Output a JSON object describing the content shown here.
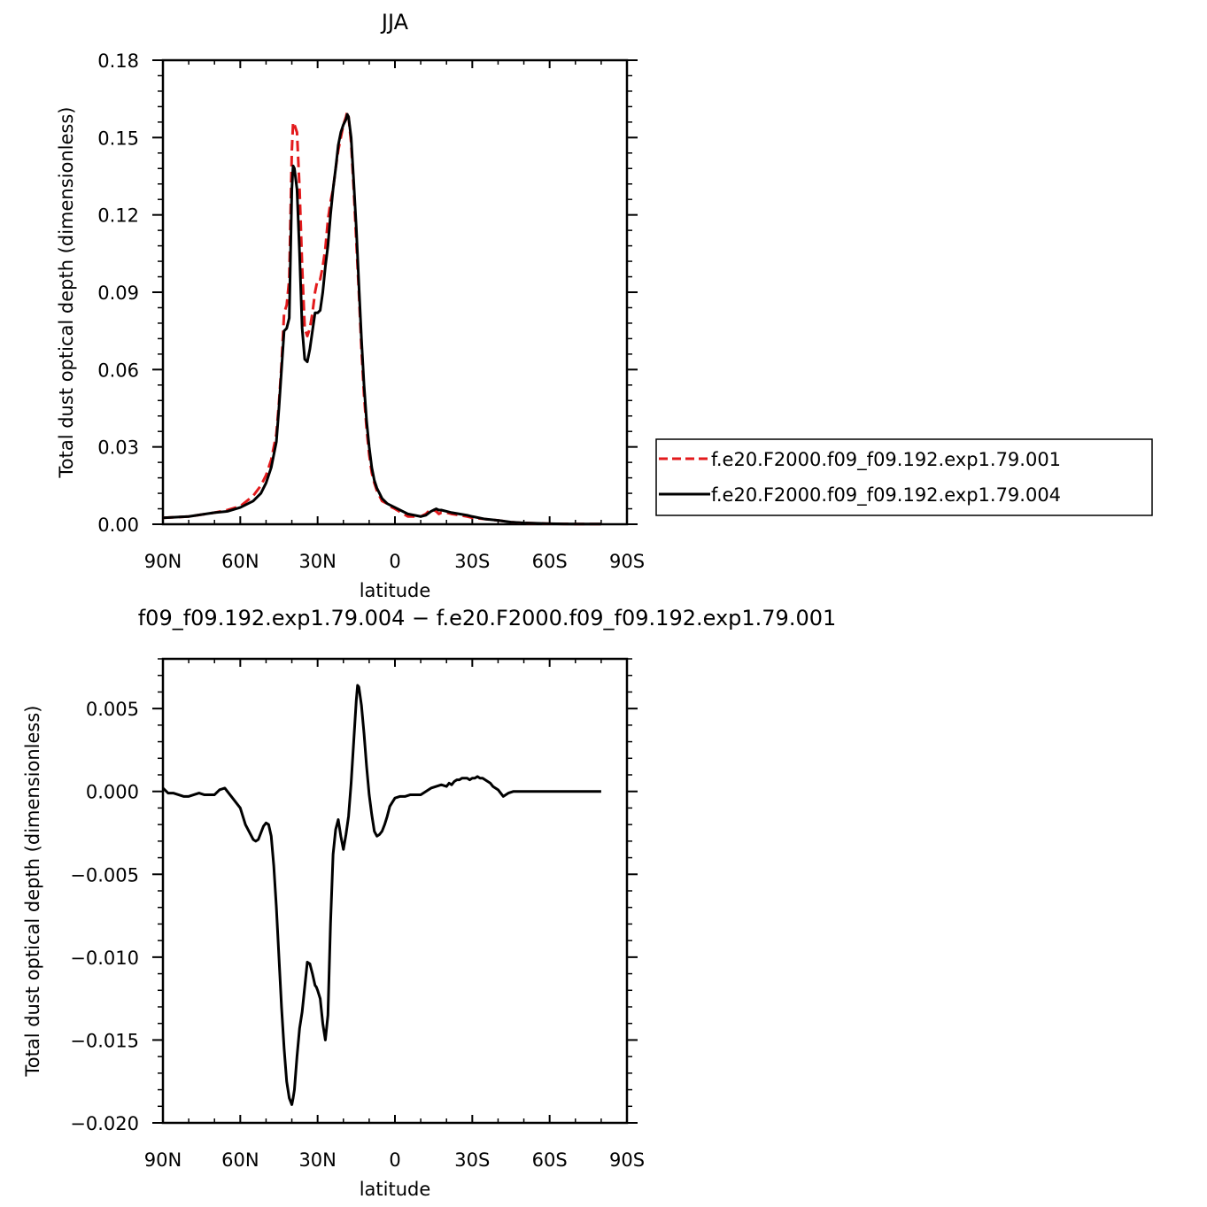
{
  "chart_data": [
    {
      "type": "line",
      "title": "JJA",
      "xlabel": "latitude",
      "ylabel": "Total dust optical depth (dimensionless)",
      "x_ticks": [
        -90,
        -60,
        -30,
        0,
        30,
        60,
        90
      ],
      "x_tick_labels": [
        "90N",
        "60N",
        "30N",
        "0",
        "30S",
        "60S",
        "90S"
      ],
      "y_ticks": [
        0,
        0.03,
        0.06,
        0.09,
        0.12,
        0.15,
        0.18
      ],
      "y_tick_labels": [
        "0.00",
        "0.03",
        "0.06",
        "0.09",
        "0.12",
        "0.15",
        "0.18"
      ],
      "xlim": [
        -90,
        90
      ],
      "ylim": [
        0,
        0.18
      ],
      "grid": false,
      "legend_position": "right",
      "series": [
        {
          "name": "f.e20.F2000.f09_f09.192.exp1.79.001",
          "color": "#e31a1c",
          "style": "dashed",
          "x": [
            -90,
            -80,
            -70,
            -65,
            -60,
            -55,
            -52,
            -50,
            -48,
            -46,
            -45,
            -44,
            -43,
            -42,
            -41,
            -40,
            -39.5,
            -39,
            -38,
            -37,
            -36,
            -35,
            -34,
            -33,
            -32,
            -31,
            -30,
            -29,
            -28,
            -27,
            -26,
            -25,
            -24,
            -23,
            -22,
            -21,
            -20,
            -19,
            -18.5,
            -18,
            -17,
            -16,
            -15,
            -14,
            -13,
            -12,
            -11,
            -10,
            -9,
            -8,
            -7,
            -6,
            -5,
            -4,
            -3,
            -2,
            0,
            5,
            10,
            12,
            14,
            15,
            16,
            17,
            18,
            20,
            22,
            25,
            28,
            30,
            35,
            40,
            45,
            50,
            60,
            70,
            80
          ],
          "values": [
            0.0025,
            0.003,
            0.0045,
            0.0055,
            0.007,
            0.011,
            0.015,
            0.019,
            0.025,
            0.035,
            0.047,
            0.062,
            0.082,
            0.085,
            0.095,
            0.145,
            0.156,
            0.155,
            0.152,
            0.13,
            0.1,
            0.076,
            0.073,
            0.076,
            0.082,
            0.09,
            0.095,
            0.095,
            0.1,
            0.107,
            0.118,
            0.125,
            0.13,
            0.138,
            0.145,
            0.15,
            0.155,
            0.158,
            0.16,
            0.158,
            0.148,
            0.13,
            0.11,
            0.09,
            0.068,
            0.05,
            0.037,
            0.027,
            0.02,
            0.016,
            0.013,
            0.011,
            0.009,
            0.0085,
            0.008,
            0.007,
            0.006,
            0.003,
            0.003,
            0.004,
            0.006,
            0.0055,
            0.005,
            0.004,
            0.0045,
            0.0045,
            0.004,
            0.0035,
            0.003,
            0.0025,
            0.002,
            0.0015,
            0.0008,
            0.0005,
            0.0002,
            0.0001,
            0.0001
          ]
        },
        {
          "name": "f.e20.F2000.f09_f09.192.exp1.79.004",
          "color": "#000000",
          "style": "solid",
          "x": [
            -90,
            -80,
            -70,
            -65,
            -60,
            -55,
            -52,
            -50,
            -48,
            -46,
            -45,
            -44,
            -43,
            -42,
            -41,
            -40,
            -39.5,
            -39,
            -38,
            -37,
            -36,
            -35,
            -34,
            -33,
            -32,
            -31,
            -30,
            -29,
            -28,
            -27,
            -26,
            -25,
            -24,
            -23,
            -22,
            -21,
            -20,
            -19,
            -18.5,
            -18,
            -17,
            -16,
            -15,
            -14,
            -13,
            -12,
            -11,
            -10,
            -9,
            -8,
            -7,
            -6,
            -5,
            -4,
            -3,
            -2,
            0,
            5,
            10,
            12,
            14,
            15,
            16,
            17,
            18,
            20,
            22,
            25,
            28,
            30,
            35,
            40,
            45,
            50,
            60,
            70,
            80
          ],
          "values": [
            0.0025,
            0.003,
            0.0045,
            0.005,
            0.0065,
            0.009,
            0.012,
            0.016,
            0.022,
            0.032,
            0.045,
            0.06,
            0.075,
            0.076,
            0.08,
            0.13,
            0.139,
            0.138,
            0.13,
            0.105,
            0.076,
            0.064,
            0.063,
            0.068,
            0.075,
            0.082,
            0.082,
            0.083,
            0.09,
            0.1,
            0.108,
            0.12,
            0.13,
            0.138,
            0.147,
            0.152,
            0.155,
            0.157,
            0.159,
            0.158,
            0.15,
            0.133,
            0.115,
            0.093,
            0.072,
            0.054,
            0.04,
            0.03,
            0.022,
            0.017,
            0.014,
            0.012,
            0.01,
            0.009,
            0.008,
            0.0075,
            0.0065,
            0.004,
            0.003,
            0.0035,
            0.005,
            0.0055,
            0.006,
            0.0055,
            0.0055,
            0.005,
            0.0045,
            0.004,
            0.0035,
            0.003,
            0.002,
            0.0015,
            0.0008,
            0.0005,
            0.0002,
            0.0001,
            0.0001
          ]
        }
      ]
    },
    {
      "type": "line",
      "title": "f09_f09.192.exp1.79.004 − f.e20.F2000.f09_f09.192.exp1.79.001",
      "xlabel": "latitude",
      "ylabel": "Total dust optical depth (dimensionless)",
      "x_ticks": [
        -90,
        -60,
        -30,
        0,
        30,
        60,
        90
      ],
      "x_tick_labels": [
        "90N",
        "60N",
        "30N",
        "0",
        "30S",
        "60S",
        "90S"
      ],
      "y_ticks": [
        -0.02,
        -0.015,
        -0.01,
        -0.005,
        0,
        0.005
      ],
      "y_tick_labels": [
        "−0.020",
        "−0.015",
        "−0.010",
        "−0.005",
        "0.000",
        "0.005"
      ],
      "xlim": [
        -90,
        90
      ],
      "ylim": [
        -0.02,
        0.008
      ],
      "grid": false,
      "series": [
        {
          "color": "#000000",
          "style": "solid",
          "x": [
            -90,
            -88,
            -86,
            -84,
            -82,
            -80,
            -78,
            -76,
            -74,
            -72,
            -70,
            -68,
            -66,
            -64,
            -62,
            -60,
            -58,
            -56,
            -55,
            -54,
            -53,
            -52,
            -51,
            -50,
            -49,
            -48,
            -47,
            -46,
            -45,
            -44,
            -43,
            -42,
            -41,
            -40,
            -39.5,
            -39,
            -38,
            -37,
            -36,
            -35,
            -34,
            -33,
            -32,
            -31,
            -30.5,
            -30,
            -29,
            -28,
            -27,
            -26,
            -25,
            -24,
            -23,
            -22,
            -21,
            -20,
            -19,
            -18,
            -17,
            -16,
            -15,
            -14.5,
            -14,
            -13,
            -12,
            -11,
            -10,
            -9,
            -8,
            -7,
            -6,
            -5,
            -4,
            -3,
            -2,
            0,
            2,
            4,
            6,
            8,
            10,
            12,
            14,
            16,
            18,
            20,
            21,
            22,
            23,
            24,
            25,
            26,
            27,
            28,
            29,
            30,
            31,
            32,
            33,
            34,
            35,
            36,
            37,
            38,
            39,
            40,
            41,
            42,
            43,
            44,
            46,
            48,
            50,
            60,
            70,
            80
          ],
          "values": [
            0.0002,
            -0.0001,
            -0.0001,
            -0.0002,
            -0.0003,
            -0.0003,
            -0.0002,
            -0.0001,
            -0.0002,
            -0.0002,
            -0.0002,
            0.0001,
            0.0002,
            -0.0002,
            -0.0006,
            -0.001,
            -0.002,
            -0.0026,
            -0.0029,
            -0.003,
            -0.0029,
            -0.0025,
            -0.0021,
            -0.0019,
            -0.002,
            -0.0027,
            -0.0045,
            -0.007,
            -0.01,
            -0.013,
            -0.0155,
            -0.0175,
            -0.0185,
            -0.0189,
            -0.0185,
            -0.018,
            -0.016,
            -0.0143,
            -0.0133,
            -0.0118,
            -0.0103,
            -0.0104,
            -0.011,
            -0.0117,
            -0.0118,
            -0.012,
            -0.0125,
            -0.014,
            -0.015,
            -0.0135,
            -0.008,
            -0.0038,
            -0.0023,
            -0.0017,
            -0.0027,
            -0.0035,
            -0.0026,
            -0.0015,
            0.0005,
            0.003,
            0.0055,
            0.0064,
            0.0063,
            0.0052,
            0.0035,
            0.0015,
            -0.0002,
            -0.0014,
            -0.0024,
            -0.0027,
            -0.0026,
            -0.0024,
            -0.002,
            -0.0015,
            -0.0009,
            -0.0004,
            -0.0003,
            -0.0003,
            -0.0002,
            -0.0002,
            -0.0002,
            0.0,
            0.0002,
            0.0003,
            0.0004,
            0.0003,
            0.0005,
            0.0004,
            0.0006,
            0.0007,
            0.0007,
            0.0008,
            0.0008,
            0.0008,
            0.0007,
            0.0008,
            0.0008,
            0.0009,
            0.0008,
            0.0008,
            0.0007,
            0.0006,
            0.0005,
            0.0003,
            0.0002,
            0.0001,
            -0.0001,
            -0.0003,
            -0.0002,
            -0.0001,
            0.0,
            0.0,
            0.0,
            0.0,
            0.0,
            0.0
          ]
        }
      ]
    }
  ]
}
